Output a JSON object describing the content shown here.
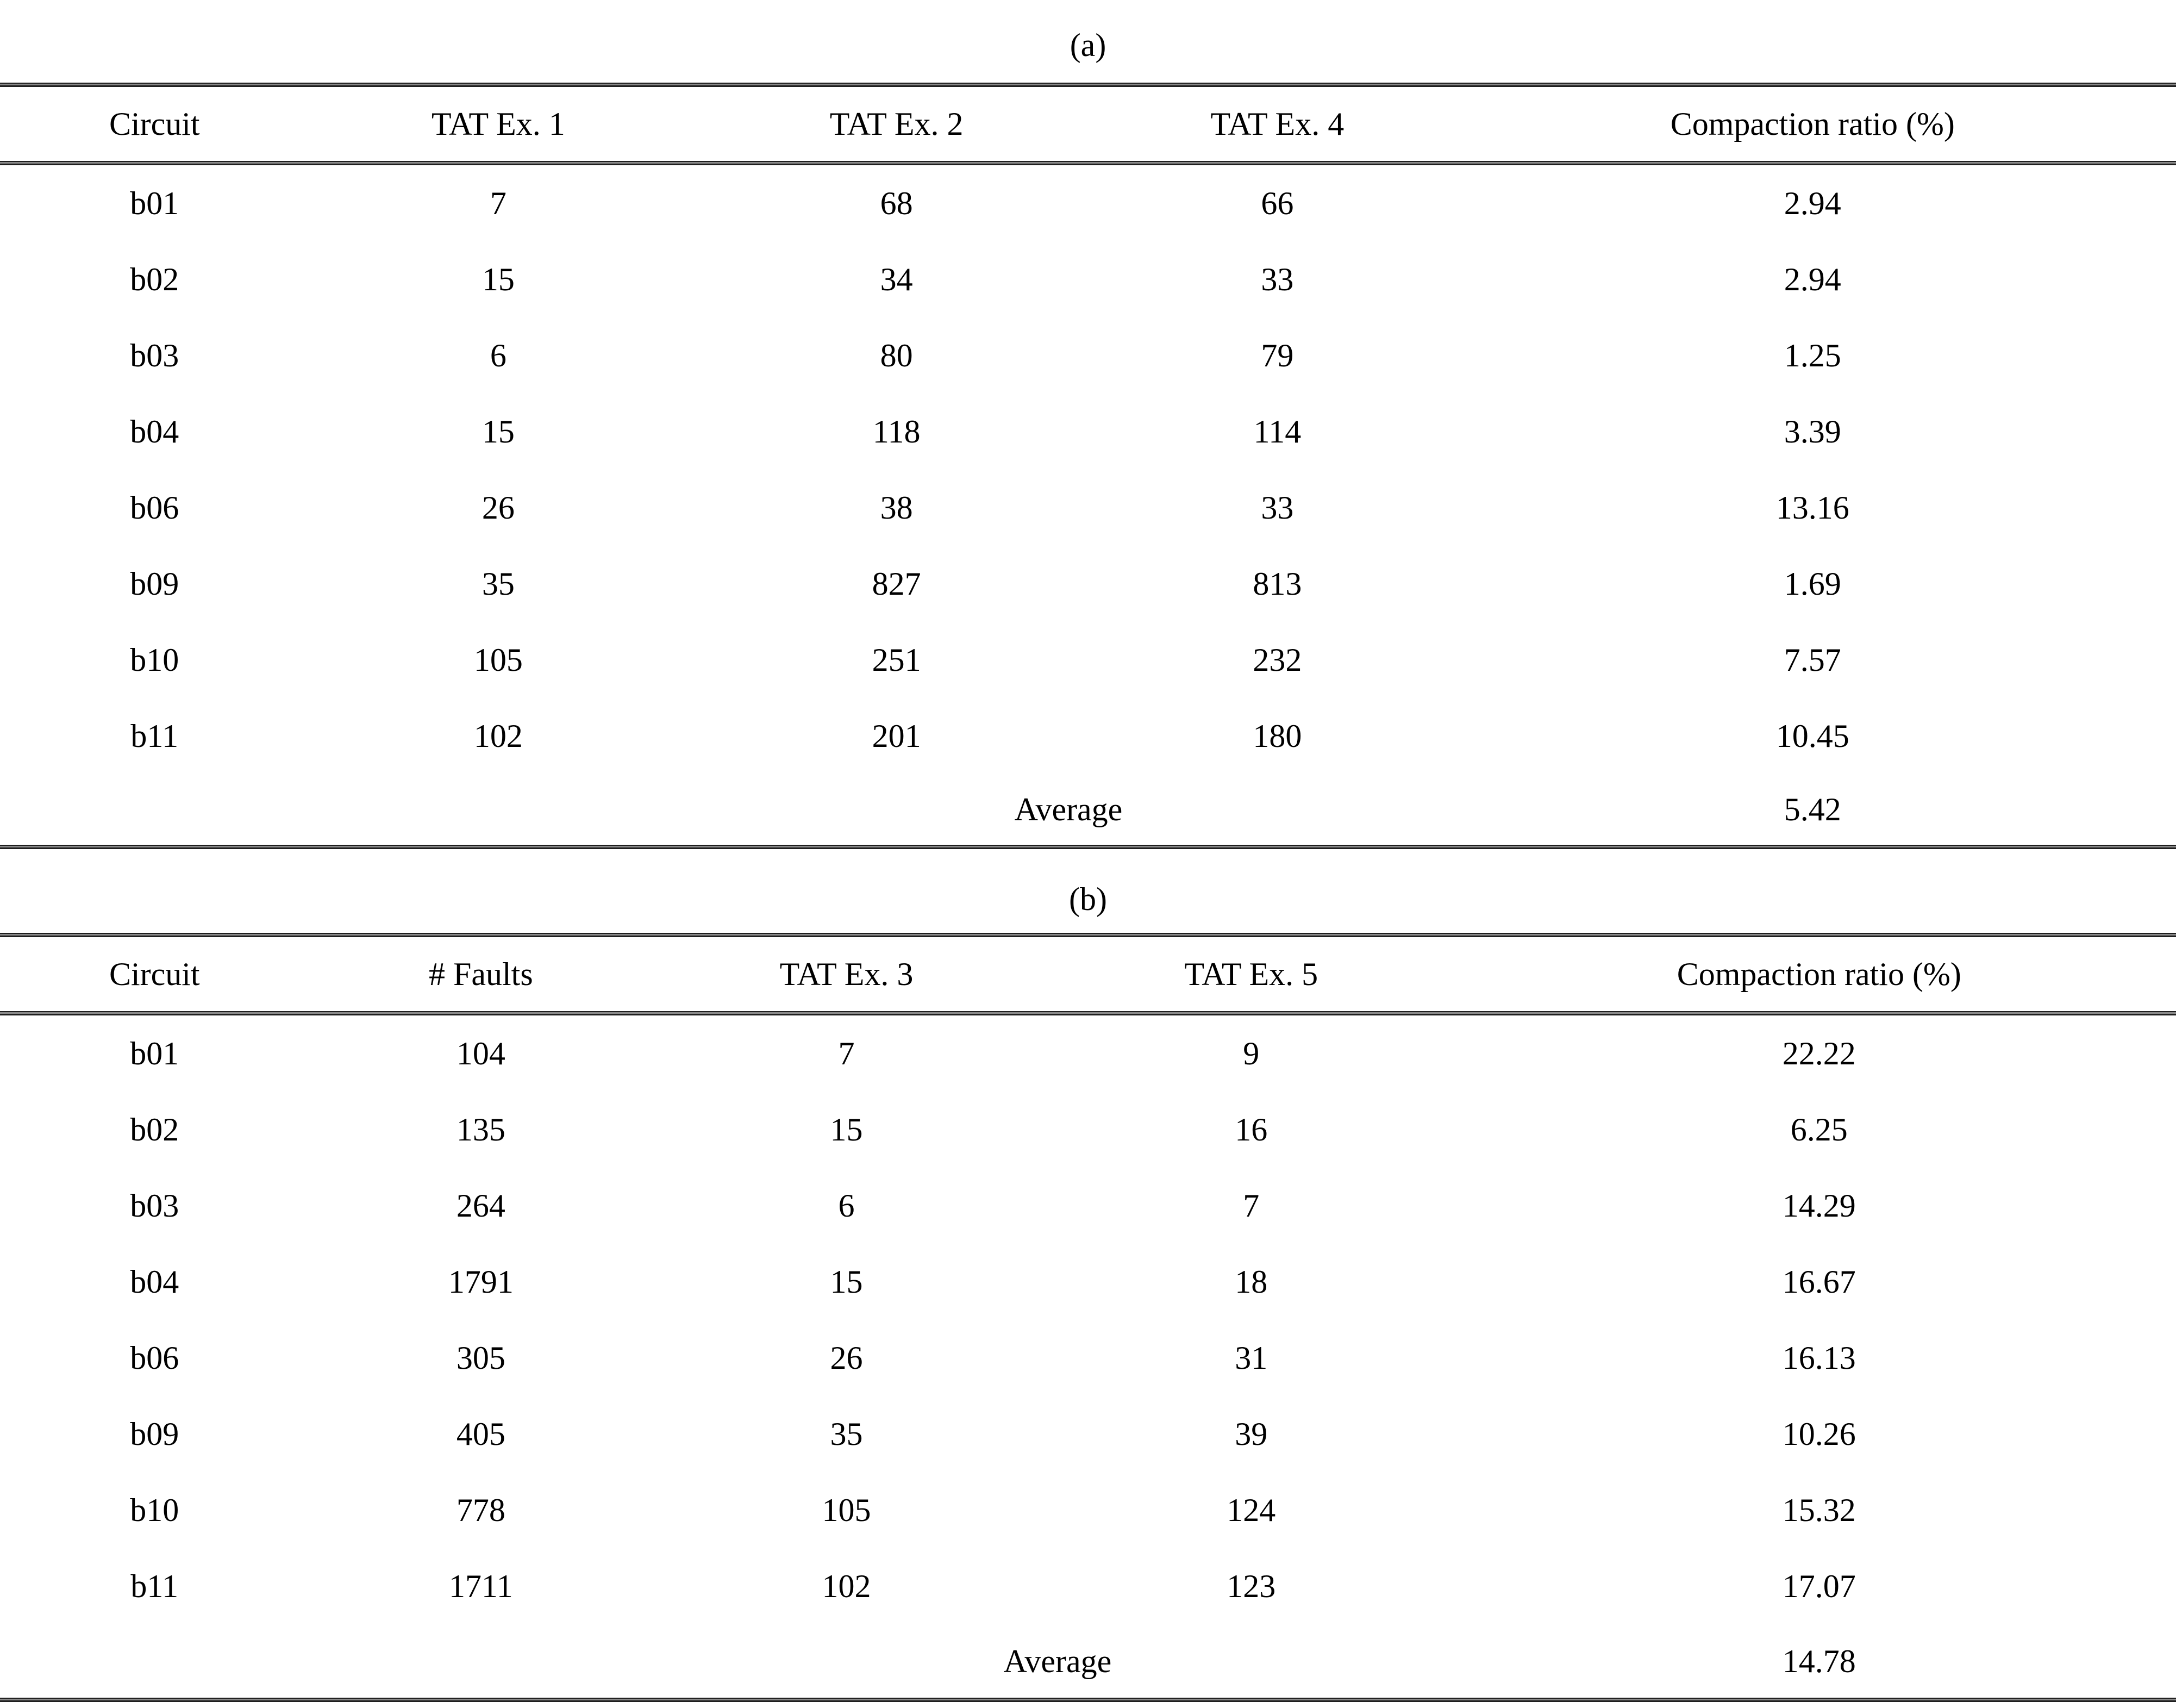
{
  "table_a": {
    "caption": "(a)",
    "headers": [
      "Circuit",
      "TAT Ex. 1",
      "TAT Ex. 2",
      "TAT Ex. 4",
      "Compaction ratio (%)"
    ],
    "rows": [
      [
        "b01",
        "7",
        "68",
        "66",
        "2.94"
      ],
      [
        "b02",
        "15",
        "34",
        "33",
        "2.94"
      ],
      [
        "b03",
        "6",
        "80",
        "79",
        "1.25"
      ],
      [
        "b04",
        "15",
        "118",
        "114",
        "3.39"
      ],
      [
        "b06",
        "26",
        "38",
        "33",
        "13.16"
      ],
      [
        "b09",
        "35",
        "827",
        "813",
        "1.69"
      ],
      [
        "b10",
        "105",
        "251",
        "232",
        "7.57"
      ],
      [
        "b11",
        "102",
        "201",
        "180",
        "10.45"
      ]
    ],
    "average_label": "Average",
    "average_value": "5.42"
  },
  "table_b": {
    "caption": "(b)",
    "headers": [
      "Circuit",
      "# Faults",
      "TAT Ex. 3",
      "TAT Ex. 5",
      "Compaction ratio (%)"
    ],
    "rows": [
      [
        "b01",
        "104",
        "7",
        "9",
        "22.22"
      ],
      [
        "b02",
        "135",
        "15",
        "16",
        "6.25"
      ],
      [
        "b03",
        "264",
        "6",
        "7",
        "14.29"
      ],
      [
        "b04",
        "1791",
        "15",
        "18",
        "16.67"
      ],
      [
        "b06",
        "305",
        "26",
        "31",
        "16.13"
      ],
      [
        "b09",
        "405",
        "35",
        "39",
        "10.26"
      ],
      [
        "b10",
        "778",
        "105",
        "124",
        "15.32"
      ],
      [
        "b11",
        "1711",
        "102",
        "123",
        "17.07"
      ]
    ],
    "average_label": "Average",
    "average_value": "14.78"
  },
  "colors": {
    "text": "#000000",
    "background": "#ffffff",
    "rule": "#1e1e1e"
  }
}
